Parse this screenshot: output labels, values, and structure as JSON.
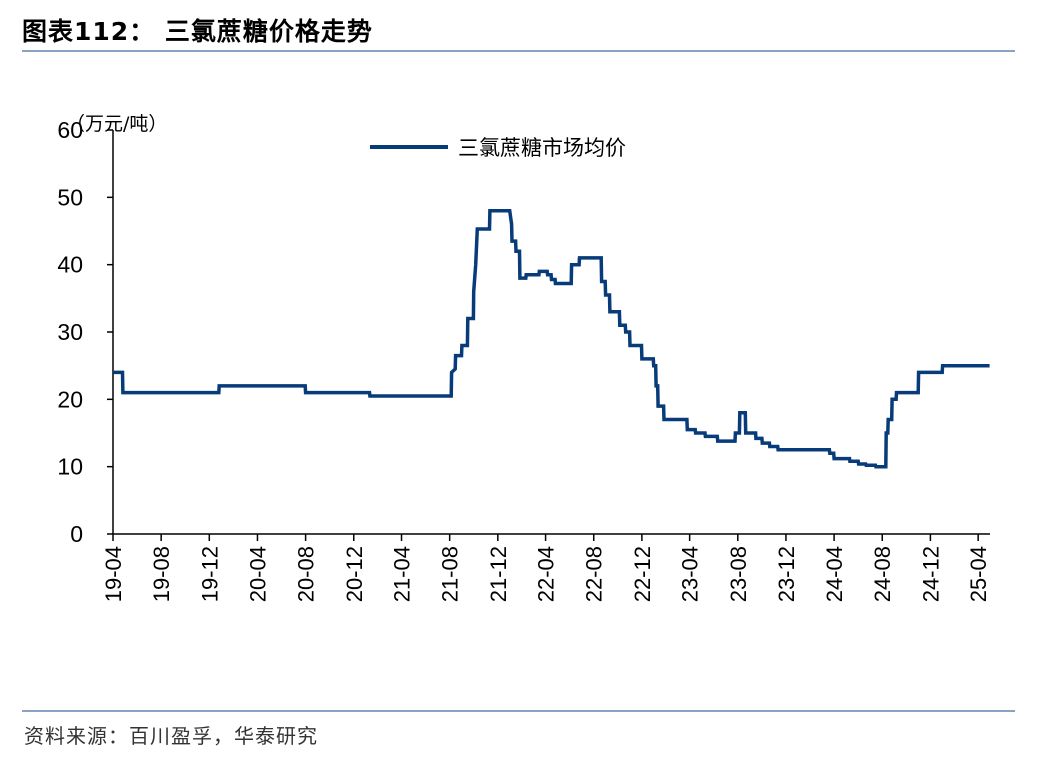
{
  "figure": {
    "title": "图表112：  三氯蔗糖价格走势",
    "source": "资料来源：百川盈孚，华泰研究"
  },
  "colors": {
    "series": "#073b7a",
    "rule": "#8aa2c8"
  },
  "chart_data": {
    "type": "line",
    "title": "",
    "ylabel": "（万元/吨）",
    "xlabel": "",
    "ylim": [
      0,
      60
    ],
    "yticks": [
      "0",
      "10",
      "20",
      "30",
      "40",
      "50",
      "60"
    ],
    "xticks": [
      "19-04",
      "19-08",
      "19-12",
      "20-04",
      "20-08",
      "20-12",
      "21-04",
      "21-08",
      "21-12",
      "22-04",
      "22-08",
      "22-12",
      "23-04",
      "23-08",
      "23-12",
      "24-04",
      "24-08",
      "24-12",
      "25-04"
    ],
    "legend_position": "top-center",
    "grid": false,
    "series": [
      {
        "name": "三氯蔗糖市场均价",
        "points": [
          [
            "2019-04-01",
            24
          ],
          [
            "2019-04-25",
            24
          ],
          [
            "2019-04-26",
            21
          ],
          [
            "2019-12-25",
            21
          ],
          [
            "2019-12-26",
            22
          ],
          [
            "2020-07-31",
            22
          ],
          [
            "2020-08-01",
            21
          ],
          [
            "2021-01-10",
            21
          ],
          [
            "2021-01-11",
            20.5
          ],
          [
            "2021-08-05",
            20.5
          ],
          [
            "2021-08-06",
            24
          ],
          [
            "2021-08-15",
            24.5
          ],
          [
            "2021-08-16",
            26.5
          ],
          [
            "2021-08-31",
            26.5
          ],
          [
            "2021-09-01",
            28
          ],
          [
            "2021-09-15",
            28
          ],
          [
            "2021-09-16",
            32
          ],
          [
            "2021-09-30",
            32
          ],
          [
            "2021-10-01",
            36
          ],
          [
            "2021-10-06",
            40
          ],
          [
            "2021-10-10",
            45.3
          ],
          [
            "2021-11-10",
            45.3
          ],
          [
            "2021-11-11",
            48
          ],
          [
            "2021-12-31",
            48
          ],
          [
            "2022-01-05",
            46
          ],
          [
            "2022-01-06",
            43.5
          ],
          [
            "2022-01-15",
            43.5
          ],
          [
            "2022-01-16",
            42
          ],
          [
            "2022-01-25",
            42
          ],
          [
            "2022-01-26",
            38
          ],
          [
            "2022-02-10",
            38
          ],
          [
            "2022-02-11",
            38.5
          ],
          [
            "2022-03-15",
            38.5
          ],
          [
            "2022-03-16",
            39
          ],
          [
            "2022-04-05",
            39
          ],
          [
            "2022-04-06",
            38.5
          ],
          [
            "2022-04-15",
            38.5
          ],
          [
            "2022-04-16",
            37.8
          ],
          [
            "2022-04-25",
            37.8
          ],
          [
            "2022-04-26",
            37.2
          ],
          [
            "2022-06-05",
            37.2
          ],
          [
            "2022-06-06",
            40
          ],
          [
            "2022-06-25",
            40
          ],
          [
            "2022-06-26",
            41
          ],
          [
            "2022-08-20",
            41
          ],
          [
            "2022-08-21",
            37.5
          ],
          [
            "2022-08-30",
            37.5
          ],
          [
            "2022-08-31",
            35.5
          ],
          [
            "2022-09-10",
            35.5
          ],
          [
            "2022-09-11",
            33
          ],
          [
            "2022-10-05",
            33
          ],
          [
            "2022-10-06",
            31
          ],
          [
            "2022-10-20",
            31
          ],
          [
            "2022-10-21",
            30
          ],
          [
            "2022-10-31",
            30
          ],
          [
            "2022-11-01",
            28
          ],
          [
            "2022-11-30",
            28
          ],
          [
            "2022-12-01",
            26
          ],
          [
            "2022-12-30",
            26
          ],
          [
            "2022-12-31",
            25
          ],
          [
            "2023-01-05",
            25
          ],
          [
            "2023-01-06",
            22
          ],
          [
            "2023-01-10",
            22
          ],
          [
            "2023-01-11",
            19
          ],
          [
            "2023-01-25",
            19
          ],
          [
            "2023-01-26",
            17
          ],
          [
            "2023-03-25",
            17
          ],
          [
            "2023-03-26",
            15.5
          ],
          [
            "2023-04-15",
            15.5
          ],
          [
            "2023-04-16",
            15
          ],
          [
            "2023-05-10",
            15
          ],
          [
            "2023-05-11",
            14.5
          ],
          [
            "2023-06-10",
            14.5
          ],
          [
            "2023-06-11",
            13.8
          ],
          [
            "2023-07-25",
            13.8
          ],
          [
            "2023-07-26",
            15
          ],
          [
            "2023-08-05",
            15
          ],
          [
            "2023-08-06",
            18
          ],
          [
            "2023-08-20",
            18
          ],
          [
            "2023-08-21",
            15
          ],
          [
            "2023-09-15",
            15
          ],
          [
            "2023-09-16",
            14.2
          ],
          [
            "2023-10-01",
            14.2
          ],
          [
            "2023-10-02",
            13.5
          ],
          [
            "2023-10-20",
            13.5
          ],
          [
            "2023-10-21",
            13
          ],
          [
            "2023-11-10",
            13
          ],
          [
            "2023-11-11",
            12.5
          ],
          [
            "2024-03-20",
            12.5
          ],
          [
            "2024-03-21",
            12
          ],
          [
            "2024-03-31",
            12
          ],
          [
            "2024-04-01",
            11.2
          ],
          [
            "2024-05-10",
            11.2
          ],
          [
            "2024-05-11",
            10.8
          ],
          [
            "2024-06-01",
            10.8
          ],
          [
            "2024-06-02",
            10.4
          ],
          [
            "2024-06-20",
            10.4
          ],
          [
            "2024-06-21",
            10.2
          ],
          [
            "2024-07-15",
            10.2
          ],
          [
            "2024-07-16",
            10
          ],
          [
            "2024-08-10",
            10
          ],
          [
            "2024-08-11",
            15
          ],
          [
            "2024-08-15",
            15
          ],
          [
            "2024-08-16",
            17
          ],
          [
            "2024-08-25",
            17
          ],
          [
            "2024-08-26",
            20
          ],
          [
            "2024-09-05",
            20
          ],
          [
            "2024-09-06",
            21
          ],
          [
            "2024-10-31",
            21
          ],
          [
            "2024-11-01",
            24
          ],
          [
            "2024-12-31",
            24
          ],
          [
            "2025-01-01",
            25
          ],
          [
            "2025-04-30",
            25
          ]
        ]
      }
    ]
  }
}
